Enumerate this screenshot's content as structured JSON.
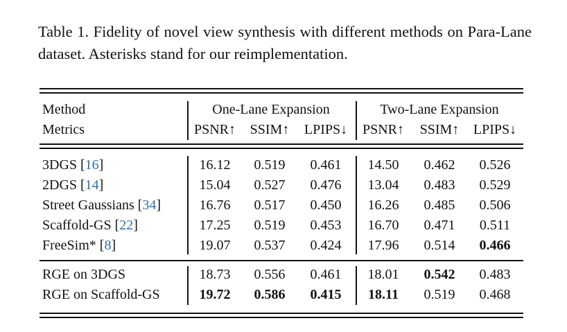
{
  "caption": "Table 1. Fidelity of novel view synthesis with different methods on Para-Lane dataset. Asterisks stand for our reimplementation.",
  "table": {
    "header": {
      "col0": [
        "Method",
        "Metrics"
      ],
      "groups": [
        "One-Lane Expansion",
        "Two-Lane Expansion"
      ],
      "metrics": [
        "PSNR↑",
        "SSIM↑",
        "LPIPS↓",
        "PSNR↑",
        "SSIM↑",
        "LPIPS↓"
      ]
    },
    "sections": [
      [
        {
          "method": [
            "3DGS [",
            "16",
            "]"
          ],
          "values": [
            "16.12",
            "0.519",
            "0.461",
            "14.50",
            "0.462",
            "0.526"
          ]
        },
        {
          "method": [
            "2DGS [",
            "14",
            "]"
          ],
          "values": [
            "15.04",
            "0.527",
            "0.476",
            "13.04",
            "0.483",
            "0.529"
          ]
        },
        {
          "method": [
            "Street Gaussians [",
            "34",
            "]"
          ],
          "values": [
            "16.76",
            "0.517",
            "0.450",
            "16.26",
            "0.485",
            "0.506"
          ]
        },
        {
          "method": [
            "Scaffold-GS [",
            "22",
            "]"
          ],
          "values": [
            "17.25",
            "0.519",
            "0.453",
            "16.70",
            "0.471",
            "0.511"
          ]
        },
        {
          "method": [
            "FreeSim* [",
            "8",
            "]"
          ],
          "values": [
            "19.07",
            "0.537",
            "0.424",
            "17.96",
            "0.514",
            "0.466"
          ],
          "bold": [
            5
          ]
        }
      ],
      [
        {
          "method": [
            "RGE on 3DGS"
          ],
          "values": [
            "18.73",
            "0.556",
            "0.461",
            "18.01",
            "0.542",
            "0.483"
          ],
          "bold": [
            4
          ]
        },
        {
          "method": [
            "RGE on Scaffold-GS"
          ],
          "values": [
            "19.72",
            "0.586",
            "0.415",
            "18.11",
            "0.519",
            "0.468"
          ],
          "bold": [
            0,
            1,
            2,
            3
          ]
        }
      ]
    ]
  }
}
